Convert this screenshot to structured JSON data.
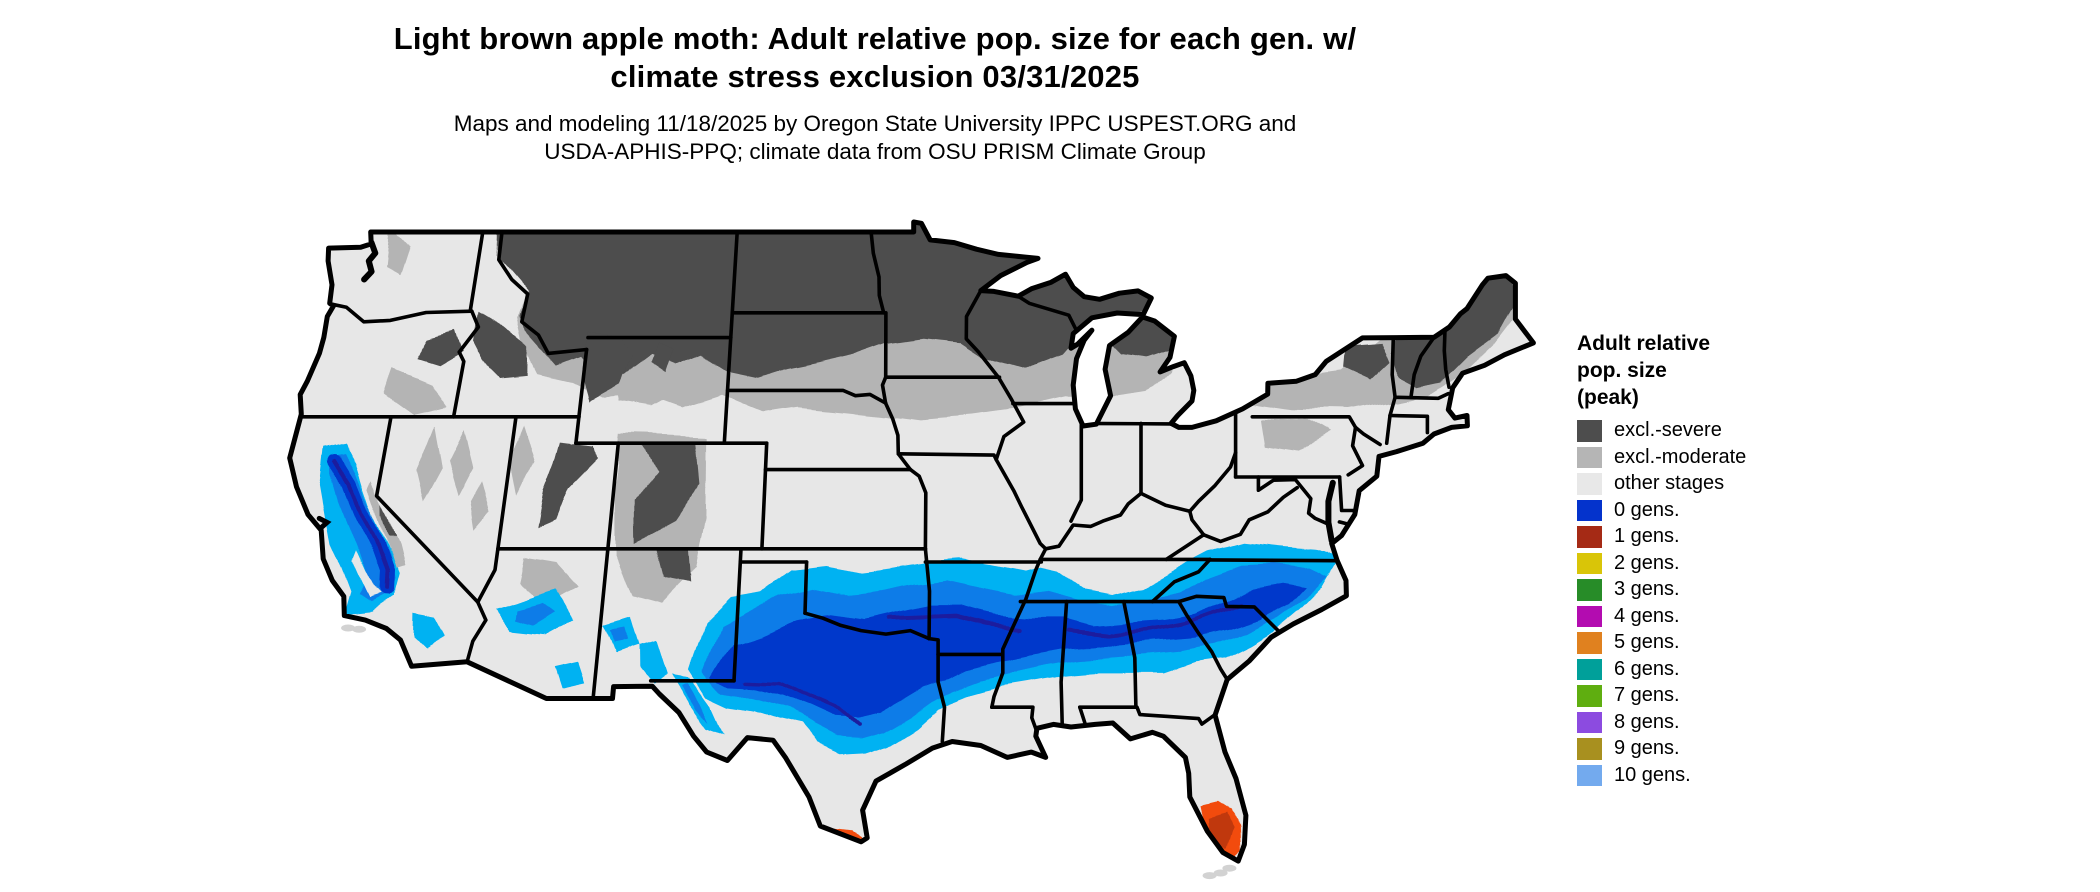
{
  "title": {
    "line1": "Light brown apple moth: Adult relative pop. size for each gen. w/",
    "line2": "climate stress exclusion 03/31/2025"
  },
  "subtitle": {
    "line1": "Maps and modeling 11/18/2025 by Oregon State University IPPC USPEST.ORG and",
    "line2": "USDA-APHIS-PPQ; climate data from OSU PRISM Climate Group"
  },
  "legend": {
    "title_lines": [
      "Adult relative",
      "pop. size",
      "(peak)"
    ],
    "items": [
      {
        "label": "excl.-severe",
        "color": "#4d4d4d"
      },
      {
        "label": "excl.-moderate",
        "color": "#b5b5b5"
      },
      {
        "label": "other stages",
        "color": "#e8e8e8"
      },
      {
        "label": "0 gens.",
        "color": "#0433cc"
      },
      {
        "label": "1 gens.",
        "color": "#a52a15"
      },
      {
        "label": "2 gens.",
        "color": "#d9c508"
      },
      {
        "label": "3 gens.",
        "color": "#278c28"
      },
      {
        "label": "4 gens.",
        "color": "#b30cb0"
      },
      {
        "label": "5 gens.",
        "color": "#e0811f"
      },
      {
        "label": "6 gens.",
        "color": "#00a09a"
      },
      {
        "label": "7 gens.",
        "color": "#5fae10"
      },
      {
        "label": "8 gens.",
        "color": "#8c4be0"
      },
      {
        "label": "9 gens.",
        "color": "#a8901f"
      },
      {
        "label": "10 gens.",
        "color": "#73aaee"
      }
    ]
  },
  "map": {
    "colors": {
      "land": "#e7e7e7",
      "severe": "#4d4d4d",
      "moderate": "#b4b4b4",
      "band_outer": "#00b2f2",
      "band_mid": "#0a7ce8",
      "band_dark": "#0439cb",
      "band_core": "#1c1f9e",
      "orange": "#f24b0d",
      "orange_dark": "#c0390b",
      "keys": "#d2d2d2",
      "outline": "#000000"
    }
  }
}
